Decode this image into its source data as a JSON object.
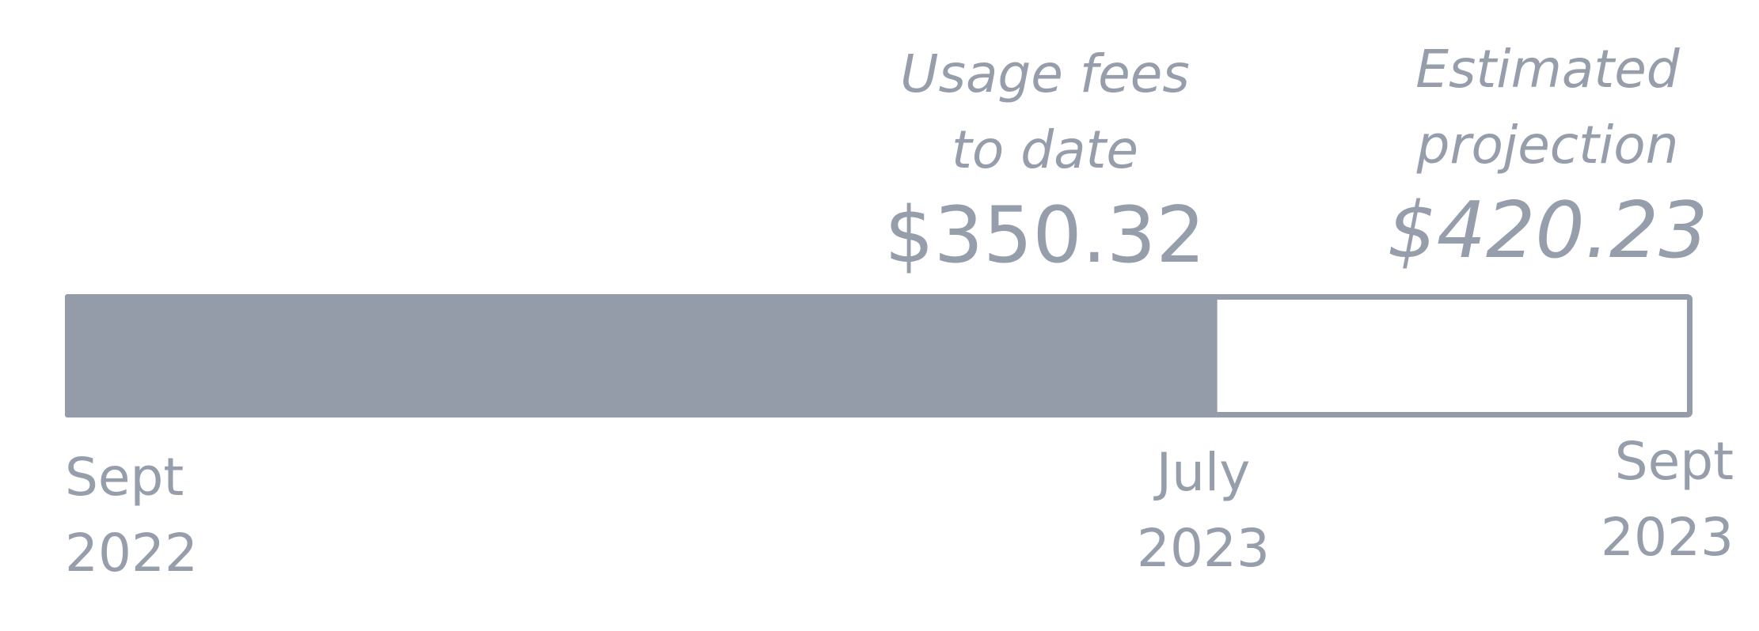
{
  "chart_data": {
    "type": "bar",
    "orientation": "horizontal",
    "title": "",
    "xlabel": "",
    "ylabel": "",
    "annotations": [
      {
        "label_line1": "Usage fees",
        "label_line2": "to date",
        "value_text": "$350.32",
        "value": 350.32,
        "style": "filled"
      },
      {
        "label_line1": "Estimated",
        "label_line2": "projection",
        "value_text": "$420.23",
        "value": 420.23,
        "style": "outline"
      }
    ],
    "ticks": [
      {
        "line1": "Sept",
        "line2": "2022",
        "date": "2022-09"
      },
      {
        "line1": "July",
        "line2": "2023",
        "date": "2023-07"
      },
      {
        "line1": "Sept",
        "line2": "2023",
        "date": "2023-09"
      }
    ],
    "filled_fraction": 0.708,
    "grid": false,
    "legend": "none",
    "colors": {
      "bar_fill": "#959ca9",
      "bar_outline": "#959ca9",
      "text": "#969dab",
      "background": "#ffffff"
    }
  }
}
